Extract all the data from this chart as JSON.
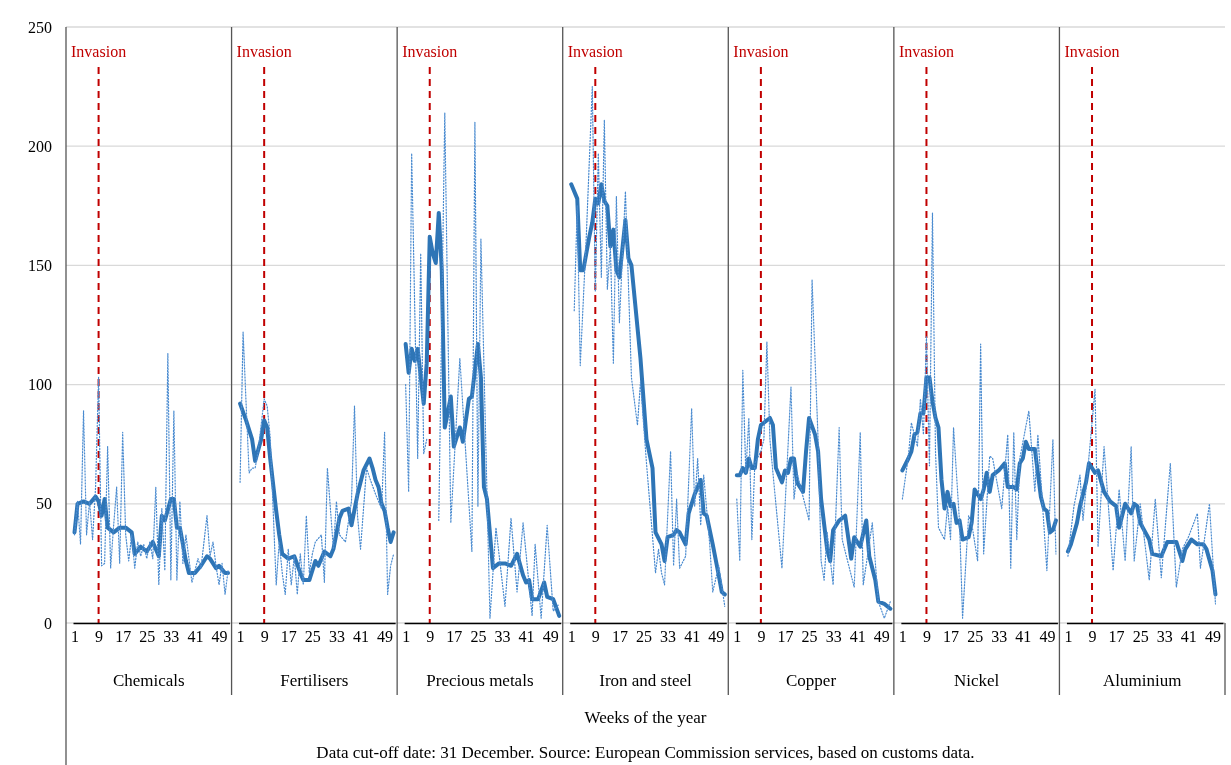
{
  "chart_data": [
    {
      "type": "line",
      "xlabel": "Chemicals",
      "xlim": [
        0.5,
        52.5
      ],
      "xticks": [
        1,
        9,
        17,
        25,
        33,
        41,
        49
      ],
      "ylim": [
        0,
        250
      ],
      "yticks": [
        0,
        50,
        100,
        150,
        200,
        250
      ],
      "grid": "y",
      "ref_lines": [
        {
          "axis": "x",
          "value": 9,
          "label": "Invasion",
          "color": "#c00000",
          "line_style": "dashed"
        }
      ],
      "annotations": [
        "Weeks of the year",
        "Data cut-off date: 31 December. Source: European Commission services, based on customs data."
      ],
      "series": [
        {
          "color": "#4a8bd0",
          "line_style": "dotted",
          "x": [
            1,
            2,
            3,
            4,
            5,
            6,
            7,
            8,
            9,
            10,
            11,
            12,
            13,
            14,
            15,
            16,
            17,
            18,
            19,
            20,
            21,
            22,
            23,
            24,
            25,
            26,
            27,
            28,
            29,
            30,
            31,
            32,
            33,
            34,
            35,
            36,
            37,
            38,
            40,
            42,
            43,
            45,
            46,
            47,
            48,
            49,
            50,
            51,
            52
          ],
          "values": [
            37,
            51,
            33,
            89,
            37,
            51,
            35,
            57,
            103,
            24,
            25,
            74,
            23,
            41,
            57,
            25,
            80,
            37,
            26,
            37,
            23,
            34,
            28,
            33,
            27,
            34,
            27,
            57,
            16,
            48,
            22,
            113,
            18,
            89,
            18,
            51,
            25,
            37,
            17,
            27,
            23,
            45,
            28,
            34,
            24,
            16,
            25,
            12,
            22
          ]
        },
        {
          "color": "#2e75b6",
          "line_style": "solid",
          "x": [
            1,
            2,
            4,
            6,
            8,
            9,
            10,
            11,
            12,
            14,
            16,
            18,
            20,
            21,
            23,
            25,
            27,
            29,
            30,
            31,
            33,
            34,
            35,
            36,
            38,
            39,
            41,
            43,
            45,
            46,
            48,
            49,
            51,
            52
          ],
          "values": [
            38,
            50,
            51,
            50,
            53,
            51,
            45,
            52,
            40,
            38,
            40,
            40,
            38,
            29,
            32,
            30,
            34,
            28,
            45,
            43,
            52,
            52,
            40,
            40,
            26,
            21,
            21,
            24,
            28,
            27,
            23,
            24,
            21,
            21
          ]
        }
      ]
    },
    {
      "type": "line",
      "xlabel": "Fertilisers",
      "xlim": [
        0.5,
        52.5
      ],
      "xticks": [
        1,
        9,
        17,
        25,
        33,
        41,
        49
      ],
      "ylim": [
        0,
        250
      ],
      "yticks": [
        0,
        50,
        100,
        150,
        200,
        250
      ],
      "grid": "y",
      "tick_labels": "x",
      "ref_lines": [
        {
          "axis": "x",
          "value": 9,
          "label": "Invasion",
          "color": "#c00000",
          "line_style": "dashed"
        }
      ],
      "series": [
        {
          "color": "#4a8bd0",
          "line_style": "dotted",
          "x": [
            1,
            2,
            3,
            4,
            5,
            6,
            7,
            9,
            10,
            11,
            13,
            14,
            15,
            16,
            17,
            18,
            19,
            20,
            21,
            22,
            23,
            24,
            25,
            26,
            28,
            29,
            30,
            32,
            33,
            34,
            36,
            38,
            39,
            40,
            41,
            43,
            44,
            46,
            48,
            49,
            50,
            51,
            52
          ],
          "values": [
            59,
            122,
            92,
            63,
            65,
            65,
            72,
            94,
            91,
            78,
            16,
            34,
            21,
            12,
            31,
            16,
            28,
            12,
            29,
            16,
            45,
            21,
            29,
            34,
            37,
            17,
            65,
            31,
            51,
            37,
            34,
            51,
            91,
            45,
            31,
            65,
            61,
            54,
            48,
            80,
            12,
            24,
            29
          ]
        },
        {
          "color": "#2e75b6",
          "line_style": "solid",
          "x": [
            1,
            3,
            5,
            6,
            8,
            9,
            10,
            11,
            13,
            14,
            15,
            17,
            19,
            21,
            22,
            24,
            26,
            27,
            29,
            31,
            32,
            34,
            35,
            37,
            38,
            40,
            42,
            44,
            45,
            46,
            47,
            48,
            49,
            50,
            51,
            52
          ],
          "values": [
            92,
            85,
            77,
            68,
            77,
            85,
            82,
            69,
            47,
            37,
            29,
            27,
            28,
            21,
            18,
            18,
            26,
            24,
            30,
            28,
            31,
            44,
            47,
            48,
            41,
            54,
            64,
            69,
            65,
            60,
            57,
            50,
            47,
            40,
            34,
            38
          ]
        }
      ]
    },
    {
      "type": "line",
      "xlabel": "Precious metals",
      "xlim": [
        0.5,
        52.5
      ],
      "xticks": [
        1,
        9,
        17,
        25,
        33,
        41,
        49
      ],
      "ylim": [
        0,
        250
      ],
      "yticks": [
        0,
        50,
        100,
        150,
        200,
        250
      ],
      "grid": "y",
      "tick_labels": "x",
      "ref_lines": [
        {
          "axis": "x",
          "value": 9,
          "label": "Invasion",
          "color": "#c00000",
          "line_style": "dashed"
        }
      ],
      "series": [
        {
          "color": "#4a8bd0",
          "line_style": "dotted",
          "x": [
            1,
            2,
            3,
            5,
            6,
            7,
            8,
            10,
            12,
            14,
            16,
            19,
            23,
            24,
            25,
            26,
            29,
            31,
            34,
            36,
            38,
            40,
            43,
            44,
            46,
            48,
            50,
            52
          ],
          "values": [
            100,
            55,
            197,
            69,
            155,
            71,
            77,
            null,
            43,
            214,
            42,
            111,
            30,
            210,
            49,
            161,
            2,
            40,
            7,
            44,
            13,
            42,
            3,
            33,
            2,
            41,
            5,
            8
          ]
        },
        {
          "color": "#2e75b6",
          "line_style": "solid",
          "x": [
            1,
            2,
            3,
            4,
            5,
            7,
            8,
            9,
            10,
            11,
            12,
            13,
            14,
            16,
            17,
            19,
            20,
            22,
            23,
            25,
            26,
            27,
            28,
            30,
            32,
            34,
            36,
            38,
            40,
            41,
            42,
            43,
            45,
            47,
            48,
            50,
            52
          ],
          "values": [
            117,
            105,
            115,
            110,
            115,
            92,
            109,
            162,
            155,
            151,
            172,
            148,
            82,
            95,
            74,
            82,
            76,
            94,
            95,
            117,
            103,
            57,
            52,
            23,
            25,
            25,
            24,
            29,
            20,
            17,
            18,
            10,
            10,
            17,
            11,
            10,
            3
          ]
        }
      ]
    },
    {
      "type": "line",
      "xlabel": "Iron and steel",
      "xlim": [
        0.5,
        52.5
      ],
      "xticks": [
        1,
        9,
        17,
        25,
        33,
        41,
        49
      ],
      "ylim": [
        0,
        250
      ],
      "yticks": [
        0,
        50,
        100,
        150,
        200,
        250
      ],
      "grid": "y",
      "tick_labels": "x",
      "ref_lines": [
        {
          "axis": "x",
          "value": 9,
          "label": "Invasion",
          "color": "#c00000",
          "line_style": "dashed"
        }
      ],
      "series": [
        {
          "color": "#4a8bd0",
          "line_style": "dotted",
          "x": [
            2,
            3,
            4,
            6,
            8,
            9,
            10,
            11,
            12,
            13,
            14,
            15,
            16,
            17,
            19,
            21,
            23,
            24,
            26,
            29,
            30,
            31,
            32,
            34,
            35,
            36,
            37,
            39,
            41,
            42,
            43,
            44,
            45,
            47,
            48,
            50,
            52
          ],
          "values": [
            131,
            175,
            108,
            162,
            225,
            139,
            197,
            145,
            211,
            140,
            158,
            109,
            179,
            126,
            181,
            103,
            83,
            101,
            67,
            21,
            31,
            21,
            16,
            72,
            24,
            52,
            23,
            28,
            90,
            49,
            69,
            41,
            62,
            33,
            13,
            24,
            7
          ]
        },
        {
          "color": "#2e75b6",
          "line_style": "solid",
          "x": [
            1,
            3,
            4,
            5,
            7,
            8,
            9,
            10,
            11,
            12,
            13,
            14,
            15,
            16,
            17,
            19,
            20,
            21,
            24,
            26,
            28,
            29,
            31,
            32,
            33,
            35,
            36,
            37,
            39,
            40,
            42,
            44,
            45,
            46,
            48,
            50,
            51,
            52
          ],
          "values": [
            184,
            178,
            148,
            148,
            162,
            168,
            178,
            176,
            184,
            177,
            175,
            158,
            165,
            148,
            145,
            169,
            153,
            150,
            111,
            77,
            65,
            38,
            33,
            26,
            36,
            37,
            39,
            38,
            33,
            46,
            54,
            60,
            46,
            45,
            33,
            20,
            13,
            12
          ]
        }
      ]
    },
    {
      "type": "line",
      "xlabel": "Copper",
      "xlim": [
        0.5,
        52.5
      ],
      "xticks": [
        1,
        9,
        17,
        25,
        33,
        41,
        49
      ],
      "ylim": [
        0,
        250
      ],
      "yticks": [
        0,
        50,
        100,
        150,
        200,
        250
      ],
      "grid": "y",
      "tick_labels": "x",
      "ref_lines": [
        {
          "axis": "x",
          "value": 9,
          "label": "Invasion",
          "color": "#c00000",
          "line_style": "dashed"
        }
      ],
      "series": [
        {
          "color": "#4a8bd0",
          "line_style": "dotted",
          "x": [
            1,
            2,
            3,
            4,
            5,
            6,
            7,
            9,
            10,
            11,
            12,
            13,
            16,
            19,
            20,
            21,
            25,
            26,
            28,
            29,
            30,
            31,
            33,
            35,
            36,
            40,
            42,
            43,
            46,
            48,
            50,
            52
          ],
          "values": [
            52,
            26,
            106,
            63,
            86,
            35,
            67,
            72,
            77,
            118,
            77,
            63,
            23,
            99,
            52,
            63,
            43,
            144,
            77,
            26,
            18,
            38,
            16,
            82,
            35,
            15,
            80,
            16,
            42,
            9,
            2,
            9
          ]
        },
        {
          "color": "#2e75b6",
          "line_style": "solid",
          "x": [
            1,
            2,
            3,
            4,
            5,
            6,
            7,
            8,
            9,
            10,
            12,
            13,
            14,
            16,
            17,
            18,
            19,
            20,
            21,
            23,
            24,
            25,
            27,
            28,
            29,
            31,
            32,
            33,
            35,
            37,
            38,
            39,
            40,
            42,
            44,
            45,
            47,
            48,
            50,
            52
          ],
          "values": [
            62,
            62,
            65,
            63,
            69,
            65,
            65,
            77,
            83,
            84,
            86,
            83,
            65,
            59,
            64,
            63,
            69,
            69,
            59,
            55,
            72,
            86,
            79,
            72,
            52,
            31,
            26,
            39,
            43,
            45,
            36,
            27,
            36,
            32,
            43,
            28,
            18,
            9,
            8,
            6
          ]
        }
      ]
    },
    {
      "type": "line",
      "xlabel": "Nickel",
      "xlim": [
        0.5,
        52.5
      ],
      "xticks": [
        1,
        9,
        17,
        25,
        33,
        41,
        49
      ],
      "ylim": [
        0,
        250
      ],
      "yticks": [
        0,
        50,
        100,
        150,
        200,
        250
      ],
      "grid": "y",
      "tick_labels": "x",
      "ref_lines": [
        {
          "axis": "x",
          "value": 9,
          "label": "Invasion",
          "color": "#c00000",
          "line_style": "dashed"
        }
      ],
      "series": [
        {
          "color": "#4a8bd0",
          "line_style": "dotted",
          "x": [
            1,
            3,
            4,
            6,
            7,
            8,
            9,
            10,
            11,
            12,
            13,
            15,
            16,
            17,
            18,
            20,
            21,
            23,
            24,
            26,
            27,
            28,
            30,
            31,
            34,
            36,
            37,
            38,
            39,
            40,
            43,
            45,
            46,
            49,
            51,
            52
          ],
          "values": [
            52,
            70,
            84,
            74,
            94,
            79,
            120,
            66,
            172,
            72,
            40,
            35,
            49,
            35,
            82,
            42,
            2,
            45,
            42,
            26,
            117,
            29,
            70,
            69,
            48,
            79,
            23,
            80,
            35,
            69,
            89,
            55,
            79,
            22,
            77,
            29
          ]
        },
        {
          "color": "#2e75b6",
          "line_style": "solid",
          "x": [
            1,
            3,
            4,
            5,
            6,
            7,
            8,
            9,
            10,
            11,
            12,
            13,
            14,
            15,
            16,
            17,
            18,
            19,
            20,
            21,
            23,
            24,
            25,
            27,
            28,
            29,
            30,
            31,
            33,
            35,
            36,
            38,
            39,
            40,
            41,
            42,
            43,
            45,
            47,
            48,
            49,
            50,
            51,
            52
          ],
          "values": [
            64,
            69,
            72,
            79,
            80,
            88,
            88,
            103,
            103,
            93,
            86,
            82,
            60,
            48,
            55,
            49,
            50,
            42,
            43,
            35,
            36,
            42,
            56,
            52,
            56,
            63,
            55,
            62,
            64,
            67,
            57,
            57,
            56,
            67,
            69,
            76,
            73,
            73,
            53,
            48,
            47,
            38,
            39,
            43
          ]
        }
      ]
    },
    {
      "type": "line",
      "xlabel": "Aluminium",
      "xlim": [
        0.5,
        52.5
      ],
      "xticks": [
        1,
        9,
        17,
        25,
        33,
        41,
        49
      ],
      "ylim": [
        0,
        250
      ],
      "yticks": [
        0,
        50,
        100,
        150,
        200,
        250
      ],
      "grid": "y",
      "tick_labels": "x",
      "ref_lines": [
        {
          "axis": "x",
          "value": 9,
          "label": "Invasion",
          "color": "#c00000",
          "line_style": "dashed"
        }
      ],
      "series": [
        {
          "color": "#4a8bd0",
          "line_style": "dotted",
          "x": [
            1,
            3,
            5,
            6,
            7,
            8,
            10,
            11,
            13,
            16,
            18,
            20,
            22,
            23,
            25,
            28,
            30,
            32,
            35,
            37,
            39,
            41,
            44,
            45,
            48,
            50
          ],
          "values": [
            28,
            49,
            62,
            43,
            56,
            70,
            98,
            32,
            74,
            22,
            56,
            26,
            74,
            26,
            50,
            18,
            52,
            19,
            67,
            15,
            31,
            36,
            46,
            23,
            50,
            8
          ]
        },
        {
          "color": "#2e75b6",
          "line_style": "solid",
          "x": [
            1,
            2,
            4,
            5,
            7,
            8,
            10,
            11,
            13,
            15,
            17,
            18,
            20,
            22,
            23,
            24,
            25,
            28,
            29,
            32,
            34,
            37,
            39,
            40,
            42,
            44,
            46,
            47,
            49,
            50
          ],
          "values": [
            30,
            33,
            42,
            49,
            59,
            67,
            63,
            64,
            55,
            51,
            49,
            40,
            50,
            46,
            50,
            49,
            42,
            35,
            29,
            28,
            34,
            34,
            26,
            31,
            35,
            33,
            33,
            31,
            22,
            12
          ]
        }
      ]
    }
  ]
}
